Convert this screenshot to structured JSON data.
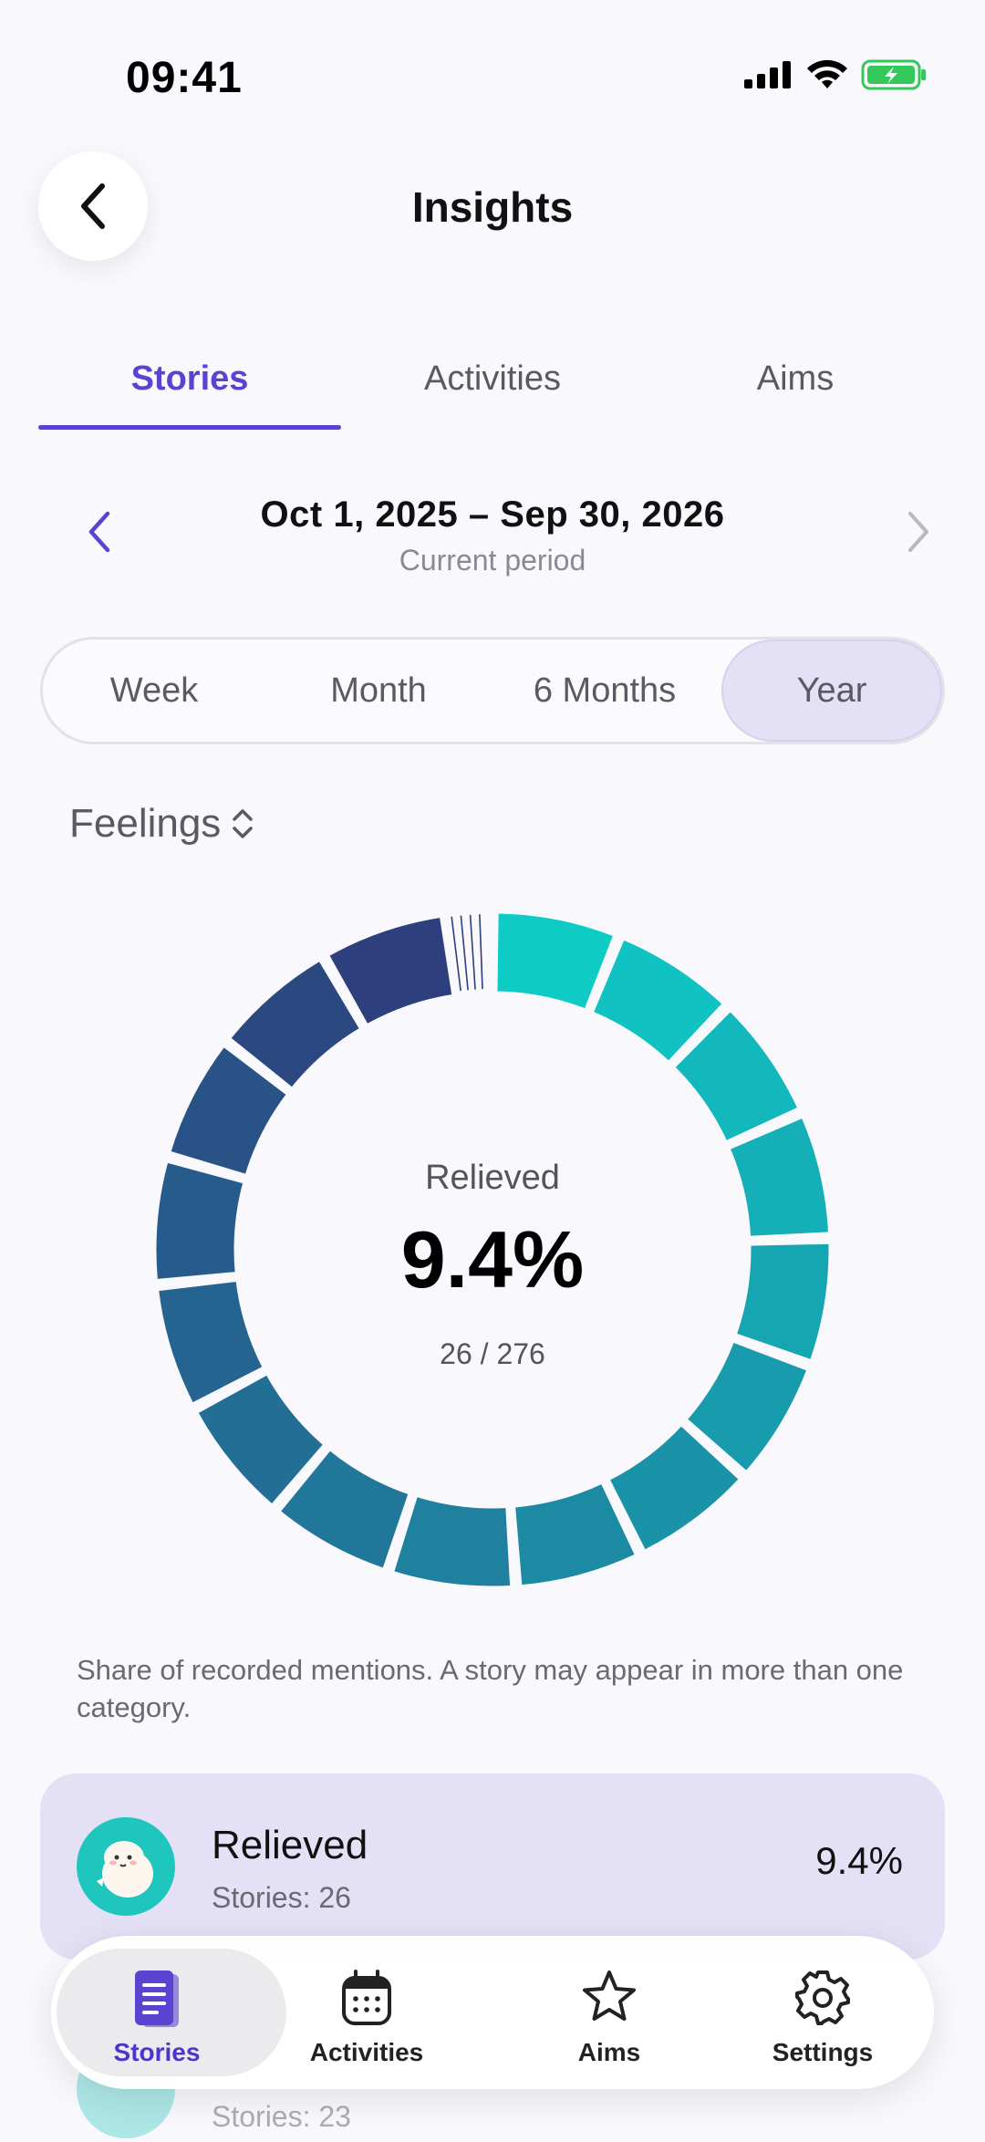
{
  "status_bar": {
    "time": "09:41"
  },
  "header": {
    "title": "Insights"
  },
  "tabs": [
    {
      "label": "Stories",
      "active": true
    },
    {
      "label": "Activities",
      "active": false
    },
    {
      "label": "Aims",
      "active": false
    }
  ],
  "period": {
    "range": "Oct 1, 2025 – Sep 30, 2026",
    "subtitle": "Current period"
  },
  "range_options": [
    {
      "label": "Week",
      "selected": false
    },
    {
      "label": "Month",
      "selected": false
    },
    {
      "label": "6 Months",
      "selected": false
    },
    {
      "label": "Year",
      "selected": true
    }
  ],
  "metric_selector": {
    "value": "Feelings"
  },
  "donut": {
    "center_label": "Relieved",
    "center_value": "9.4%",
    "center_count": "26 / 276",
    "segment_count": 16,
    "colors": {
      "start": "#0ecbc6",
      "end": "#2d3f7c"
    }
  },
  "footnote": "Share of recorded mentions. A story may appear in more than one category.",
  "list": [
    {
      "title": "Relieved",
      "subtitle": "Stories: 26",
      "percent": "9.4%",
      "icon": "relieved-feeling-icon"
    },
    {
      "title": "",
      "subtitle": "Stories: 23",
      "percent": "",
      "icon": "feeling-icon"
    }
  ],
  "tabbar": [
    {
      "label": "Stories",
      "icon": "document-icon",
      "active": true
    },
    {
      "label": "Activities",
      "icon": "calendar-icon",
      "active": false
    },
    {
      "label": "Aims",
      "icon": "star-icon",
      "active": false
    },
    {
      "label": "Settings",
      "icon": "gear-icon",
      "active": false
    }
  ],
  "colors": {
    "accent": "#5a43d0",
    "selected_bg": "#e4e0f6"
  }
}
